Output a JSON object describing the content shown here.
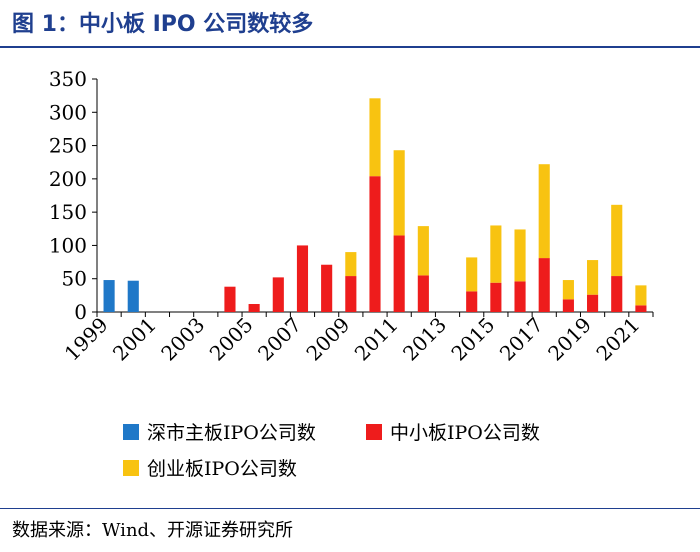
{
  "title": "图 1：中小板 IPO 公司数较多",
  "source": "数据来源：Wind、开源证券研究所",
  "chart_data": {
    "type": "bar",
    "stacked": true,
    "x": [
      1999,
      2000,
      2001,
      2002,
      2003,
      2004,
      2005,
      2006,
      2007,
      2008,
      2009,
      2010,
      2011,
      2012,
      2013,
      2014,
      2015,
      2016,
      2017,
      2018,
      2019,
      2020,
      2021
    ],
    "tick_labels": [
      "1999",
      "2001",
      "2003",
      "2005",
      "2007",
      "2009",
      "2011",
      "2013",
      "2015",
      "2017",
      "2019",
      "2021"
    ],
    "yticks": [
      0,
      50,
      100,
      150,
      200,
      250,
      300,
      350
    ],
    "ylim": [
      0,
      350
    ],
    "legend_position": "bottom",
    "series": [
      {
        "name": "深市主板IPO公司数",
        "color": "#1f78c8",
        "values": [
          48,
          47,
          0,
          0,
          0,
          0,
          0,
          0,
          0,
          0,
          0,
          0,
          0,
          0,
          0,
          0,
          0,
          0,
          0,
          0,
          0,
          0,
          0
        ]
      },
      {
        "name": "中小板IPO公司数",
        "color": "#ee1c1c",
        "values": [
          0,
          0,
          0,
          0,
          0,
          38,
          12,
          52,
          100,
          71,
          54,
          204,
          115,
          55,
          0,
          31,
          44,
          46,
          81,
          19,
          26,
          54,
          10
        ]
      },
      {
        "name": "创业板IPO公司数",
        "color": "#f8c311",
        "values": [
          0,
          0,
          0,
          0,
          0,
          0,
          0,
          0,
          0,
          0,
          36,
          117,
          128,
          74,
          0,
          51,
          86,
          78,
          141,
          29,
          52,
          107,
          30
        ]
      }
    ]
  }
}
